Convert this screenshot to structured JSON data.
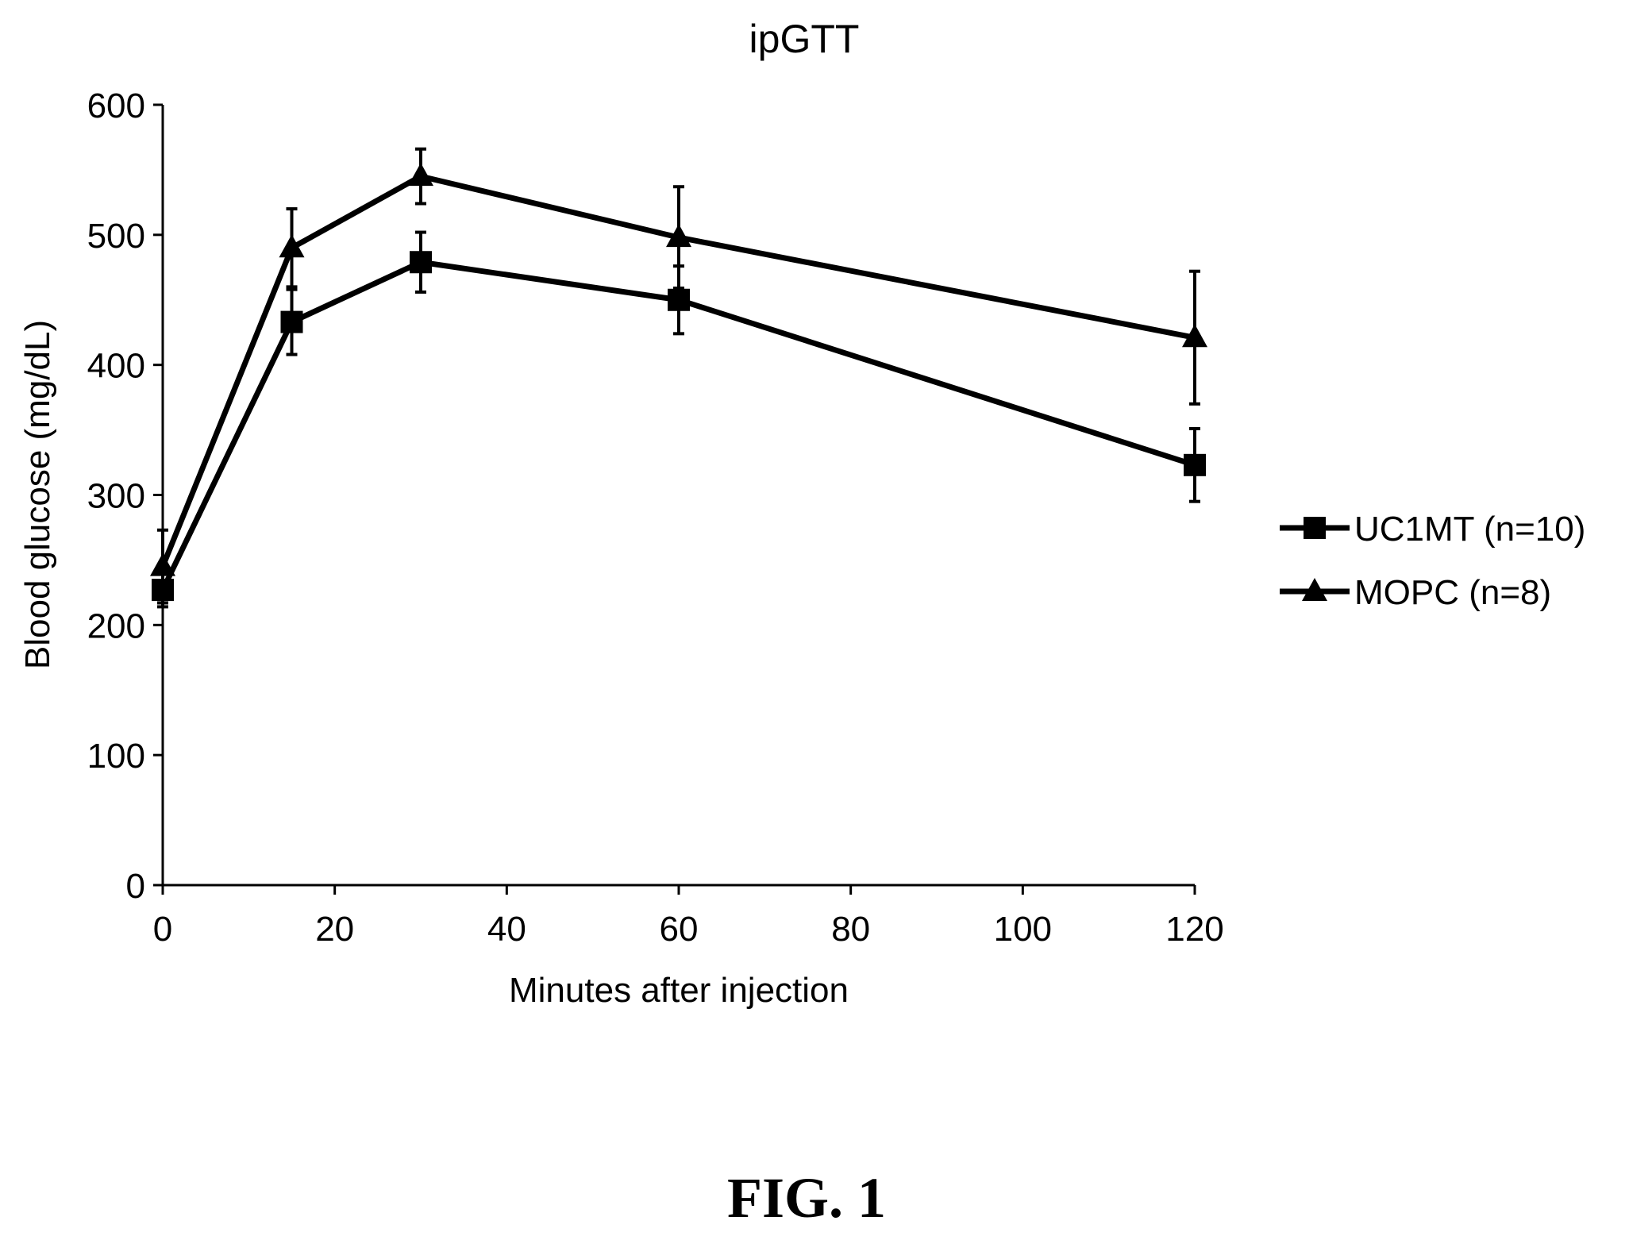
{
  "chart_data": {
    "type": "line",
    "title": "ipGTT",
    "xlabel": "Minutes after injection",
    "ylabel": "Blood glucose (mg/dL)",
    "xlim": [
      0,
      120
    ],
    "ylim": [
      0,
      600
    ],
    "xticks": [
      0,
      20,
      40,
      60,
      80,
      100,
      120
    ],
    "yticks": [
      0,
      100,
      200,
      300,
      400,
      500,
      600
    ],
    "grid": false,
    "legend_position": "right",
    "series": [
      {
        "name": "UC1MT (n=10)",
        "marker": "square",
        "x": [
          0,
          15,
          30,
          60,
          120
        ],
        "y": [
          227,
          433,
          479,
          450,
          323
        ],
        "error": [
          13,
          25,
          23,
          26,
          28
        ]
      },
      {
        "name": "MOPC (n=8)",
        "marker": "triangle",
        "x": [
          0,
          15,
          30,
          60,
          120
        ],
        "y": [
          245,
          490,
          545,
          498,
          421
        ],
        "error": [
          28,
          30,
          21,
          39,
          51
        ]
      }
    ]
  },
  "figure_label": "FIG. 1",
  "colors": {
    "line": "#000000",
    "background": "#ffffff"
  }
}
